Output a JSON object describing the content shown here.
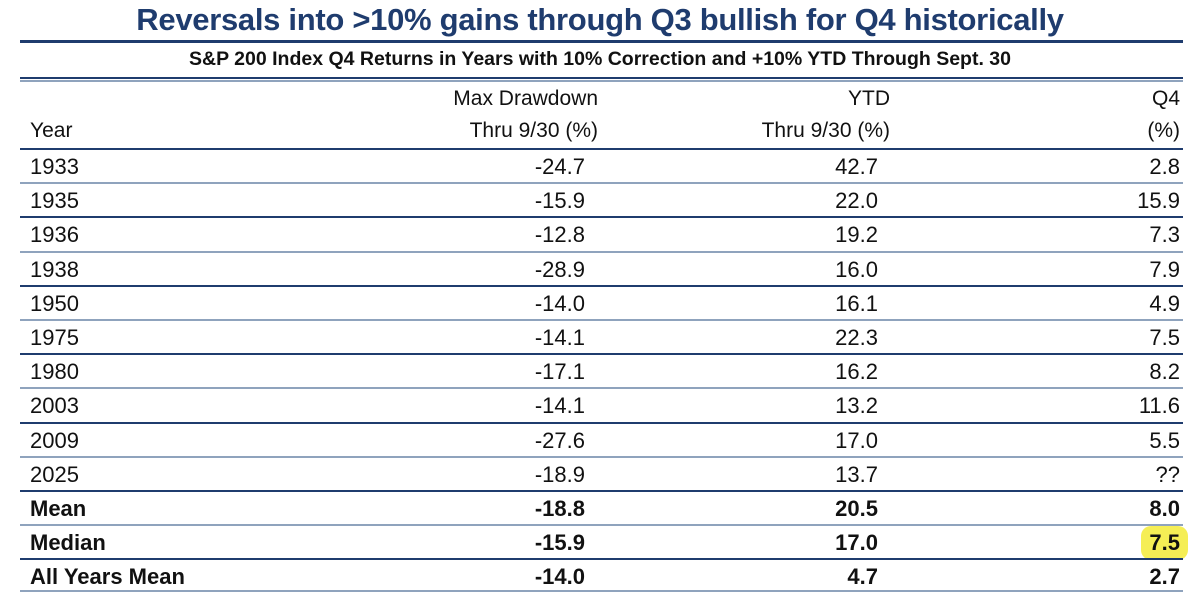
{
  "title": "Reversals into >10% gains through Q3 bullish for Q4 historically",
  "subtitle": "S&P 200 Index Q4 Returns in Years with 10% Correction and +10% YTD Through Sept. 30",
  "colors": {
    "title": "#1f3c6e",
    "rule_dark": "#1f3c6e",
    "rule_light": "#8fa3bd",
    "highlight": "#f5ee55"
  },
  "chart_data": {
    "type": "table",
    "columns": [
      {
        "line1": "",
        "line2": "Year"
      },
      {
        "line1": "Max Drawdown",
        "line2": "Thru 9/30 (%)"
      },
      {
        "line1": "YTD",
        "line2": "Thru 9/30 (%)"
      },
      {
        "line1": "Q4",
        "line2": "(%)"
      }
    ],
    "rows": [
      [
        "1933",
        "-24.7",
        "42.7",
        "2.8"
      ],
      [
        "1935",
        "-15.9",
        "22.0",
        "15.9"
      ],
      [
        "1936",
        "-12.8",
        "19.2",
        "7.3"
      ],
      [
        "1938",
        "-28.9",
        "16.0",
        "7.9"
      ],
      [
        "1950",
        "-14.0",
        "16.1",
        "4.9"
      ],
      [
        "1975",
        "-14.1",
        "22.3",
        "7.5"
      ],
      [
        "1980",
        "-17.1",
        "16.2",
        "8.2"
      ],
      [
        "2003",
        "-14.1",
        "13.2",
        "11.6"
      ],
      [
        "2009",
        "-27.6",
        "17.0",
        "5.5"
      ],
      [
        "2025",
        "-18.9",
        "13.7",
        "??"
      ]
    ],
    "summary_rows": [
      [
        "Mean",
        "-18.8",
        "20.5",
        "8.0"
      ],
      [
        "Median",
        "-15.9",
        "17.0",
        "7.5"
      ],
      [
        "All Years Mean",
        "-14.0",
        "4.7",
        "2.7"
      ]
    ],
    "highlighted_cell": "Median Q4"
  }
}
